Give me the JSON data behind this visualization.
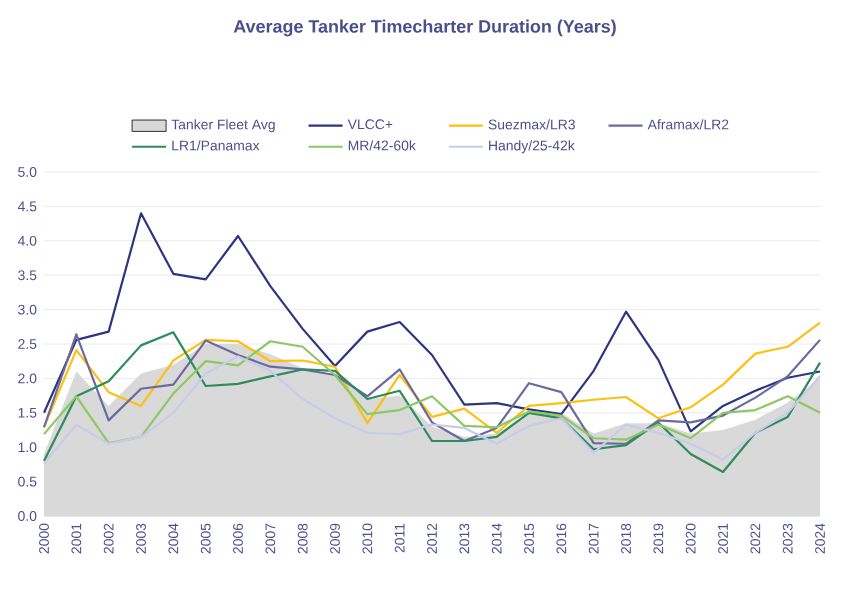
{
  "chart_data": {
    "type": "line",
    "title": "Average Tanker Timecharter Duration (Years)",
    "categories": [
      "2000",
      "2001",
      "2002",
      "2003",
      "2004",
      "2005",
      "2006",
      "2007",
      "2008",
      "2009",
      "2010",
      "2011",
      "2012",
      "2013",
      "2014",
      "2015",
      "2016",
      "2017",
      "2018",
      "2019",
      "2020",
      "2021",
      "2022",
      "2023",
      "2024"
    ],
    "ylim": [
      0,
      5
    ],
    "yticks": [
      {
        "value": 0,
        "label": "0.0"
      },
      {
        "value": 0.5,
        "label": "0.5"
      },
      {
        "value": 1,
        "label": "1.0"
      },
      {
        "value": 1.5,
        "label": "1.5"
      },
      {
        "value": 2,
        "label": "2.0"
      },
      {
        "value": 2.5,
        "label": "2.5"
      },
      {
        "value": 3,
        "label": "3.0"
      },
      {
        "value": 3.5,
        "label": "3.5"
      },
      {
        "value": 4,
        "label": "4.0"
      },
      {
        "value": 4.5,
        "label": "4.5"
      },
      {
        "value": 5,
        "label": "5.0"
      }
    ],
    "grid": "y",
    "legend": "top",
    "series": [
      {
        "name": "Tanker Fleet Avg",
        "type": "area",
        "color": "#d9d9d9",
        "values": [
          0.9,
          2.1,
          1.6,
          2.07,
          2.2,
          2.5,
          2.5,
          2.35,
          2.15,
          2.05,
          1.7,
          1.75,
          1.3,
          1.15,
          1.2,
          1.5,
          1.5,
          1.2,
          1.35,
          1.35,
          1.2,
          1.25,
          1.4,
          1.65,
          2.0
        ]
      },
      {
        "name": "VLCC+",
        "color": "#2e3580",
        "values": [
          1.5,
          2.56,
          2.68,
          4.4,
          3.52,
          3.44,
          4.07,
          3.34,
          2.72,
          2.18,
          2.68,
          2.82,
          2.34,
          1.62,
          1.64,
          1.55,
          1.48,
          2.11,
          2.97,
          2.27,
          1.23,
          1.6,
          1.82,
          2.01,
          2.1
        ]
      },
      {
        "name": "Suezmax/LR3",
        "color": "#fdc010",
        "values": [
          1.29,
          2.41,
          1.8,
          1.6,
          2.26,
          2.56,
          2.54,
          2.25,
          2.26,
          2.17,
          1.35,
          2.05,
          1.44,
          1.56,
          1.21,
          1.6,
          1.64,
          1.69,
          1.73,
          1.42,
          1.58,
          1.91,
          2.36,
          2.46,
          2.81
        ]
      },
      {
        "name": "Aframax/LR2",
        "color": "#6a6aa0",
        "values": [
          1.29,
          2.64,
          1.39,
          1.85,
          1.91,
          2.55,
          2.34,
          2.17,
          2.13,
          2.05,
          1.74,
          2.13,
          1.36,
          1.09,
          1.28,
          1.93,
          1.8,
          1.06,
          1.05,
          1.39,
          1.36,
          1.46,
          1.72,
          2.03,
          2.56
        ]
      },
      {
        "name": "LR1/Panamax",
        "color": "#2e8b5e",
        "values": [
          0.8,
          1.74,
          1.96,
          2.48,
          2.67,
          1.89,
          1.92,
          2.03,
          2.13,
          2.11,
          1.7,
          1.82,
          1.09,
          1.09,
          1.15,
          1.5,
          1.42,
          0.97,
          1.03,
          1.36,
          0.9,
          0.64,
          1.21,
          1.44,
          2.23
        ]
      },
      {
        "name": "MR/42-60k",
        "color": "#8cc864",
        "values": [
          1.19,
          1.74,
          1.06,
          1.15,
          1.78,
          2.25,
          2.19,
          2.54,
          2.46,
          2.05,
          1.48,
          1.54,
          1.74,
          1.31,
          1.29,
          1.52,
          1.46,
          1.13,
          1.11,
          1.33,
          1.13,
          1.5,
          1.54,
          1.74,
          1.5
        ]
      },
      {
        "name": "Handy/25-42k",
        "color": "#c8cce8",
        "values": [
          0.76,
          1.33,
          1.05,
          1.15,
          1.5,
          2.07,
          2.32,
          2.11,
          1.7,
          1.42,
          1.21,
          1.19,
          1.33,
          1.28,
          1.05,
          1.31,
          1.42,
          0.92,
          1.33,
          1.21,
          1.05,
          0.82,
          1.21,
          1.5,
          2.03
        ]
      }
    ]
  }
}
